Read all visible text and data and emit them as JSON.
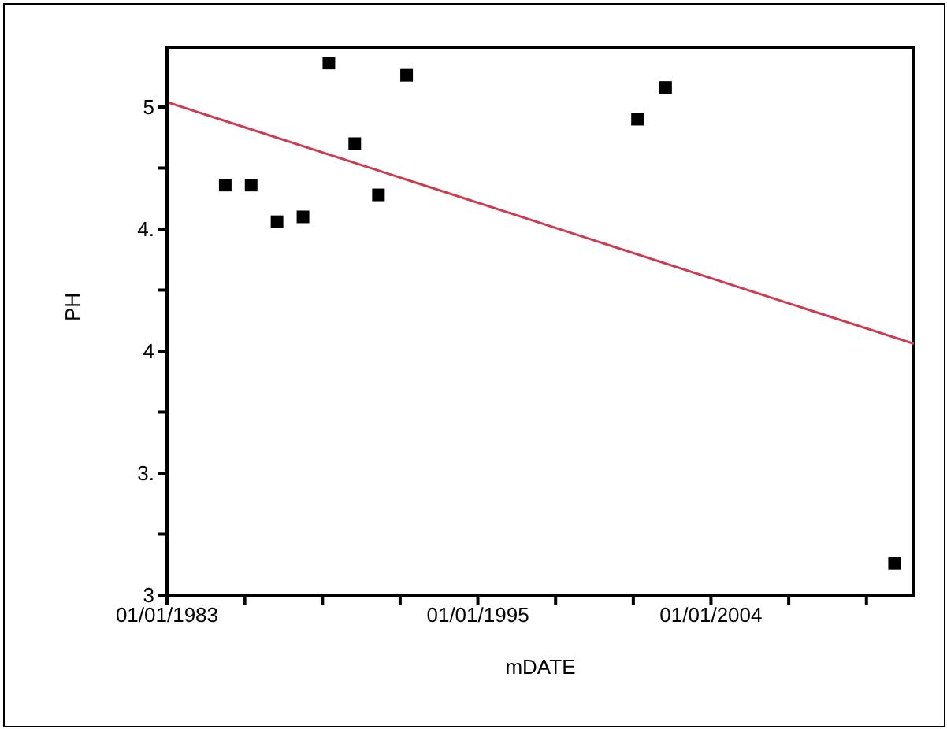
{
  "chart_data": {
    "type": "scatter",
    "xlabel": "mDATE",
    "ylabel": "PH",
    "x": [
      "1985-04",
      "1986-04",
      "1987-04",
      "1988-04",
      "1989-04",
      "1990-04",
      "1991-03",
      "1992-04",
      "2001-03",
      "2002-04",
      "2011-02"
    ],
    "series": [
      {
        "color": "#000000",
        "marker": "square",
        "values": [
          4.68,
          4.68,
          4.53,
          4.55,
          5.18,
          4.85,
          4.64,
          5.13,
          4.95,
          5.08,
          3.13
        ]
      },
      {
        "type": "line",
        "marker": "none",
        "color": "#d03a50",
        "x": [
          "1983-01-01",
          "2011-11-01"
        ],
        "values": [
          5.02,
          4.03
        ]
      }
    ],
    "xlim": [
      "1983-01-01",
      "2011-11-01"
    ],
    "xticks": [
      {
        "value": "1983-01-01",
        "label": "01/01/1983"
      },
      {
        "value": "1986-01-01",
        "label": null
      },
      {
        "value": "1989-01-01",
        "label": null
      },
      {
        "value": "1992-01-01",
        "label": null
      },
      {
        "value": "1995-01-01",
        "label": "01/01/1995"
      },
      {
        "value": "1998-01-01",
        "label": null
      },
      {
        "value": "2001-01-01",
        "label": null
      },
      {
        "value": "2004-01-01",
        "label": "01/01/2004"
      },
      {
        "value": "2007-01-01",
        "label": null
      },
      {
        "value": "2010-01-01",
        "label": null
      }
    ],
    "ylim": [
      3,
      5.245
    ],
    "yticks": [
      3,
      {
        "value": 3.25,
        "label": null
      },
      {
        "value": 3.5,
        "label": "3."
      },
      {
        "value": 3.75,
        "label": null
      },
      4,
      {
        "value": 4.25,
        "label": null
      },
      {
        "value": 4.5,
        "label": "4."
      },
      {
        "value": 4.75,
        "label": null
      },
      5
    ],
    "grid": false,
    "legend": false
  }
}
